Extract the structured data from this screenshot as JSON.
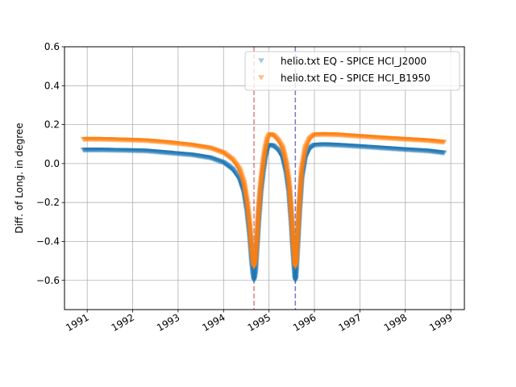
{
  "chart_data": {
    "type": "scatter",
    "title": "",
    "xlabel": "",
    "ylabel": "Diff. of Long. in degree",
    "xlim": [
      1990.5,
      1999.3
    ],
    "ylim": [
      -0.75,
      0.6
    ],
    "grid": true,
    "legend_position": "top-right",
    "x_ticks": [
      "1991",
      "1992",
      "1993",
      "1994",
      "1995",
      "1996",
      "1997",
      "1998",
      "1999"
    ],
    "x_tick_values": [
      1991,
      1992,
      1993,
      1994,
      1995,
      1996,
      1997,
      1998,
      1999
    ],
    "y_ticks": [
      "−0.6",
      "−0.4",
      "−0.2",
      "0.0",
      "0.2",
      "0.4",
      "0.6"
    ],
    "y_tick_values": [
      -0.6,
      -0.4,
      -0.2,
      0.0,
      0.2,
      0.4,
      0.6
    ],
    "vlines": [
      {
        "x": 1994.67,
        "color": "#d62728",
        "style": "dashed"
      },
      {
        "x": 1995.58,
        "color": "#1f1f9f",
        "style": "dashed"
      }
    ],
    "series": [
      {
        "name": "helio.txt EQ - SPICE HCI_J2000",
        "color": "#1f77b4",
        "legend_color": "#a6c8e0",
        "marker": "triangle-down",
        "x": [
          1990.92,
          1991.3,
          1991.8,
          1992.3,
          1992.8,
          1993.3,
          1993.7,
          1994.0,
          1994.2,
          1994.35,
          1994.45,
          1994.52,
          1994.58,
          1994.62,
          1994.65,
          1994.67,
          1994.7,
          1994.73,
          1994.77,
          1994.82,
          1994.87,
          1994.92,
          1994.97,
          1995.02,
          1995.1,
          1995.2,
          1995.3,
          1995.38,
          1995.44,
          1995.49,
          1995.53,
          1995.56,
          1995.58,
          1995.6,
          1995.63,
          1995.67,
          1995.72,
          1995.8,
          1995.9,
          1996.0,
          1996.2,
          1996.5,
          1997.0,
          1997.5,
          1998.0,
          1998.5,
          1998.85
        ],
        "y": [
          0.07,
          0.07,
          0.068,
          0.065,
          0.055,
          0.045,
          0.03,
          0.005,
          -0.03,
          -0.08,
          -0.15,
          -0.25,
          -0.38,
          -0.5,
          -0.57,
          -0.6,
          -0.56,
          -0.45,
          -0.3,
          -0.15,
          -0.05,
          0.03,
          0.08,
          0.095,
          0.09,
          0.07,
          0.03,
          -0.05,
          -0.15,
          -0.3,
          -0.45,
          -0.55,
          -0.6,
          -0.55,
          -0.42,
          -0.25,
          -0.08,
          0.03,
          0.08,
          0.095,
          0.098,
          0.095,
          0.088,
          0.08,
          0.072,
          0.065,
          0.055
        ]
      },
      {
        "name": "helio.txt EQ - SPICE HCI_B1950",
        "color": "#ff7f0e",
        "legend_color": "#ffbf86",
        "marker": "triangle-down",
        "x": [
          1990.92,
          1991.3,
          1991.8,
          1992.3,
          1992.8,
          1993.3,
          1993.7,
          1994.0,
          1994.2,
          1994.35,
          1994.45,
          1994.52,
          1994.58,
          1994.62,
          1994.65,
          1994.67,
          1994.7,
          1994.73,
          1994.77,
          1994.82,
          1994.87,
          1994.92,
          1994.97,
          1995.02,
          1995.1,
          1995.2,
          1995.3,
          1995.38,
          1995.44,
          1995.49,
          1995.53,
          1995.56,
          1995.58,
          1995.6,
          1995.63,
          1995.67,
          1995.72,
          1995.8,
          1995.9,
          1996.0,
          1996.2,
          1996.5,
          1997.0,
          1997.5,
          1998.0,
          1998.5,
          1998.85
        ],
        "y": [
          0.125,
          0.125,
          0.122,
          0.118,
          0.108,
          0.095,
          0.08,
          0.055,
          0.02,
          -0.03,
          -0.1,
          -0.2,
          -0.33,
          -0.45,
          -0.51,
          -0.53,
          -0.5,
          -0.4,
          -0.25,
          -0.1,
          0.0,
          0.08,
          0.13,
          0.15,
          0.145,
          0.12,
          0.08,
          0.0,
          -0.1,
          -0.25,
          -0.4,
          -0.5,
          -0.53,
          -0.5,
          -0.37,
          -0.2,
          -0.03,
          0.08,
          0.13,
          0.148,
          0.15,
          0.148,
          0.14,
          0.132,
          0.125,
          0.118,
          0.11
        ]
      }
    ]
  }
}
